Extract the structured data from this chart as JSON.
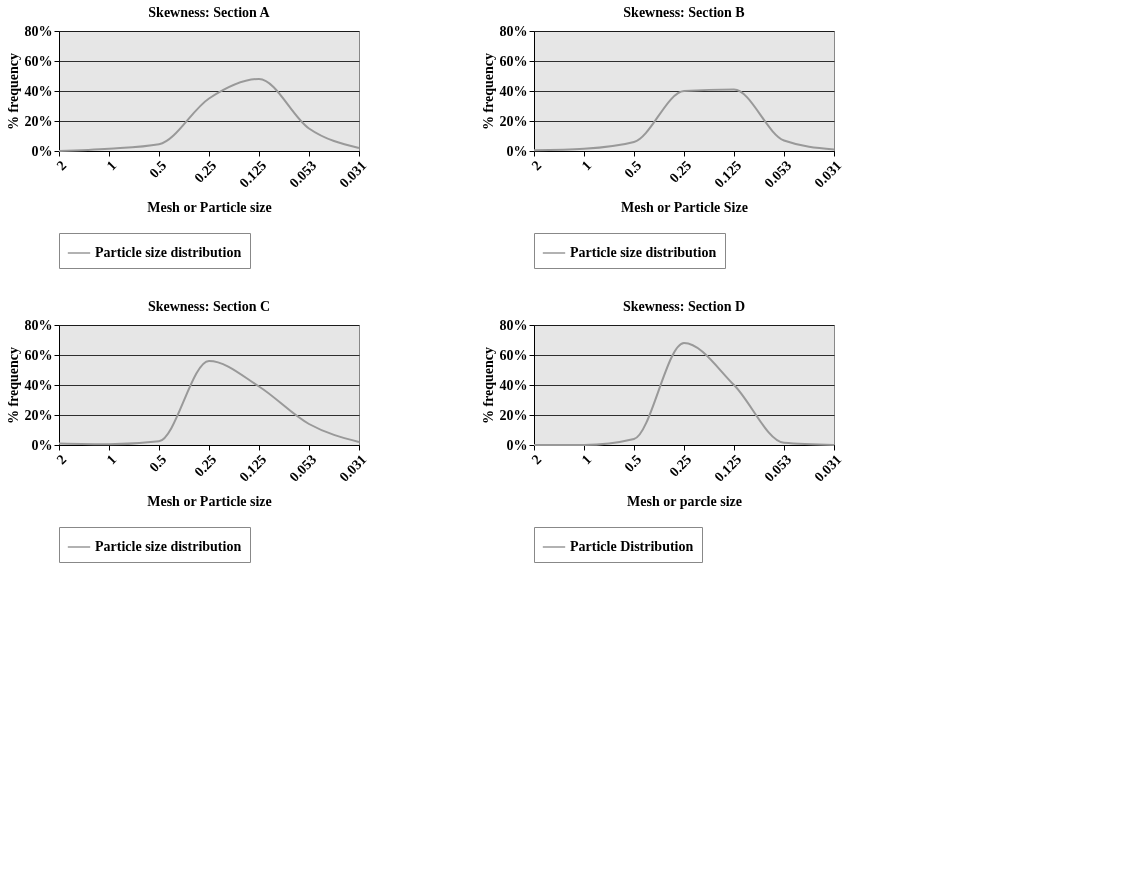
{
  "chart_data": [
    {
      "type": "line",
      "title": "Skewness: Section A",
      "xlabel": "Mesh or Particle size",
      "ylabel": "% frequency",
      "categories": [
        "2",
        "1",
        "0.5",
        "0.25",
        "0.125",
        "0.053",
        "0.031"
      ],
      "series": [
        {
          "name": "Particle size distribution",
          "color": "#999999",
          "values": [
            0,
            1.5,
            4.5,
            35,
            48,
            15,
            2
          ]
        }
      ],
      "ylim": [
        0,
        80
      ],
      "yticks": [
        {
          "value": 0,
          "label": "0%"
        },
        {
          "value": 20,
          "label": "20%"
        },
        {
          "value": 40,
          "label": "40%"
        },
        {
          "value": 60,
          "label": "60%"
        },
        {
          "value": 80,
          "label": "80%"
        }
      ],
      "grid": "y",
      "legend": "bottom"
    },
    {
      "type": "line",
      "title": "Skewness: Section B",
      "xlabel": "Mesh or Particle Size",
      "ylabel": "% frequency",
      "categories": [
        "2",
        "1",
        "0.5",
        "0.25",
        "0.125",
        "0.053",
        "0.031"
      ],
      "series": [
        {
          "name": "Particle size distribution",
          "color": "#999999",
          "values": [
            0.5,
            1.5,
            6,
            40,
            41,
            7,
            1
          ]
        }
      ],
      "ylim": [
        0,
        80
      ],
      "yticks": [
        {
          "value": 0,
          "label": "0%"
        },
        {
          "value": 20,
          "label": "20%"
        },
        {
          "value": 40,
          "label": "40%"
        },
        {
          "value": 60,
          "label": "60%"
        },
        {
          "value": 80,
          "label": "80%"
        }
      ],
      "grid": "y",
      "legend": "bottom"
    },
    {
      "type": "line",
      "title": "Skewness: Section C",
      "xlabel": "Mesh or Particle size",
      "ylabel": "% frequency",
      "categories": [
        "2",
        "1",
        "0.5",
        "0.25",
        "0.125",
        "0.053",
        "0.031"
      ],
      "series": [
        {
          "name": "Particle size distribution",
          "color": "#999999",
          "values": [
            1,
            0.5,
            2.5,
            56,
            39,
            14,
            2
          ]
        }
      ],
      "ylim": [
        0,
        80
      ],
      "yticks": [
        {
          "value": 0,
          "label": "0%"
        },
        {
          "value": 20,
          "label": "20%"
        },
        {
          "value": 40,
          "label": "40%"
        },
        {
          "value": 60,
          "label": "60%"
        },
        {
          "value": 80,
          "label": "80%"
        }
      ],
      "grid": "y",
      "legend": "bottom"
    },
    {
      "type": "line",
      "title": "Skewness: Section D",
      "xlabel": "Mesh or parcle size",
      "ylabel": "% frequency",
      "categories": [
        "2",
        "1",
        "0.5",
        "0.25",
        "0.125",
        "0.053",
        "0.031"
      ],
      "series": [
        {
          "name": "Particle Distribution",
          "color": "#999999",
          "values": [
            0,
            0,
            4,
            68,
            40,
            1.5,
            0
          ]
        }
      ],
      "ylim": [
        0,
        80
      ],
      "yticks": [
        {
          "value": 0,
          "label": "0%"
        },
        {
          "value": 20,
          "label": "20%"
        },
        {
          "value": 40,
          "label": "40%"
        },
        {
          "value": 60,
          "label": "60%"
        },
        {
          "value": 80,
          "label": "80%"
        }
      ],
      "grid": "y",
      "legend": "bottom"
    }
  ]
}
